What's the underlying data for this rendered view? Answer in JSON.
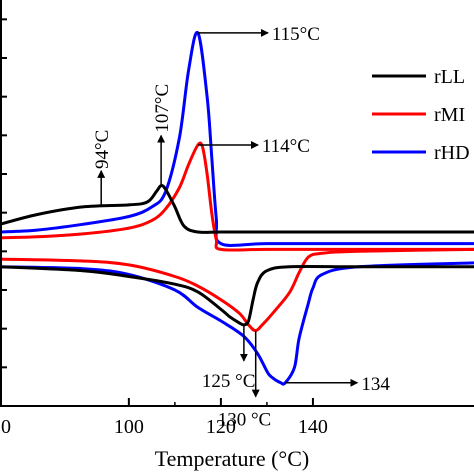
{
  "chart_data": {
    "type": "line",
    "title": "",
    "xlabel": "Temperature (°C)",
    "ylabel": "",
    "xlim": [
      72,
      175
    ],
    "x_ticks": [
      100,
      120,
      140
    ],
    "x_tick_labels": [
      "100",
      "120",
      "140"
    ],
    "x_tick_partial_label": "0",
    "legend": {
      "position": "right",
      "entries": [
        {
          "label": "rLL",
          "color": "#000000"
        },
        {
          "label": "rMI",
          "color": "#ff0000"
        },
        {
          "label": "rHD",
          "color": "#0000ff"
        }
      ]
    },
    "series": [
      {
        "color": "#0000ff",
        "x": [
          72,
          80,
          90,
          100,
          105,
          108,
          111,
          113,
          115,
          117,
          118,
          119,
          120,
          130,
          150,
          175
        ],
        "y": [
          180,
          182,
          188,
          196,
          206,
          222,
          278,
          348,
          386,
          320,
          258,
          194,
          168,
          168,
          168,
          168
        ]
      },
      {
        "color": "#ff0000",
        "x": [
          72,
          80,
          90,
          100,
          105,
          108,
          111,
          113,
          115,
          116,
          117,
          118,
          119,
          120,
          130,
          150,
          175
        ],
        "y": [
          174,
          175,
          178,
          184,
          192,
          204,
          226,
          250,
          270,
          268,
          240,
          200,
          172,
          162,
          162,
          162,
          162
        ]
      },
      {
        "color": "#000000",
        "x": [
          72,
          80,
          90,
          100,
          104,
          106,
          107,
          108,
          110,
          112,
          115,
          120,
          130,
          150,
          175
        ],
        "y": [
          188,
          198,
          206,
          208,
          211,
          222,
          228,
          224,
          206,
          186,
          180,
          180,
          180,
          180,
          180
        ]
      },
      {
        "color": "#0000ff",
        "x": [
          72,
          90,
          100,
          110,
          115,
          120,
          125,
          128,
          130,
          131,
          133,
          134,
          136,
          137,
          139,
          140,
          142,
          150,
          175
        ],
        "y": [
          144,
          142,
          136,
          120,
          102,
          88,
          72,
          54,
          36,
          30,
          24,
          24,
          40,
          70,
          106,
          122,
          136,
          144,
          148
        ]
      },
      {
        "color": "#ff0000",
        "x": [
          72,
          90,
          100,
          110,
          115,
          120,
          124,
          126,
          127.5,
          129,
          132,
          135,
          137,
          139,
          142,
          150,
          175
        ],
        "y": [
          152,
          150,
          146,
          134,
          124,
          110,
          96,
          84,
          78,
          84,
          100,
          118,
          138,
          154,
          158,
          160,
          162
        ]
      },
      {
        "color": "#000000",
        "x": [
          72,
          90,
          100,
          110,
          115,
          120,
          122,
          124,
          125,
          126,
          127,
          128,
          130,
          135,
          150,
          175
        ],
        "y": [
          144,
          140,
          134,
          126,
          118,
          100,
          92,
          86,
          84,
          88,
          110,
          128,
          140,
          144,
          144,
          144
        ]
      }
    ],
    "annotations": [
      {
        "text": "115°C",
        "x": 115,
        "y": 386
      },
      {
        "text": "114°C",
        "x": 115,
        "y": 270
      },
      {
        "text": "107°C",
        "x": 107,
        "y": 228
      },
      {
        "text": "94°C",
        "x": 94,
        "y": 208
      },
      {
        "text": "125 °C",
        "x": 125,
        "y": 84
      },
      {
        "text": "130 °C",
        "x": 128,
        "y": 78
      },
      {
        "text": "134",
        "x": 134,
        "y": 24
      }
    ]
  }
}
